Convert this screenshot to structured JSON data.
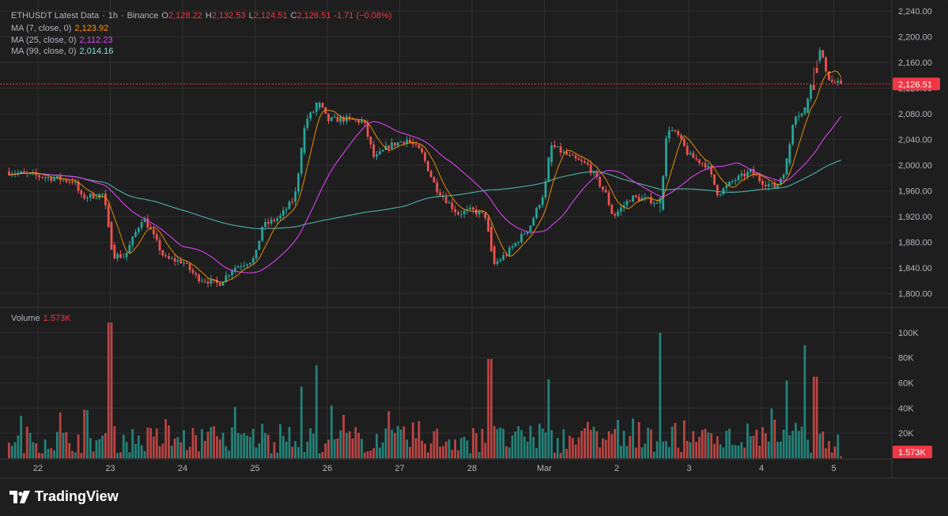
{
  "legend": {
    "symbol": "ETHUSDT Latest Data",
    "interval": "1h",
    "exchange": "Binance",
    "open_label": "O",
    "open": "2,128.22",
    "high_label": "H",
    "high": "2,132.53",
    "low_label": "L",
    "low": "2,124.51",
    "close_label": "C",
    "close": "2,126.51",
    "change": "-1.71 (−0.08%)",
    "ma7_label": "MA (7, close, 0)",
    "ma7_value": "2,123.92",
    "ma25_label": "MA (25, close, 0)",
    "ma25_value": "2,112.23",
    "ma99_label": "MA (99, close, 0)",
    "ma99_value": "2,014.16",
    "volume_label": "Volume",
    "volume_value": "1.573K"
  },
  "brand": {
    "name": "TradingView"
  },
  "colors": {
    "up": "#26a69a",
    "down": "#ef5350",
    "ma7": "#ff9800",
    "ma25": "#e040fb",
    "ma99": "#4db6ac",
    "grid": "#2e2e2e",
    "axis_text": "#b2b5be",
    "last_price": "#f23645"
  },
  "chart_data": [
    {
      "type": "candlestick",
      "title": "ETHUSDT Latest Data · 1h · Binance",
      "ylim": [
        1780,
        2240
      ],
      "y_ticks": [
        "1,800.00",
        "1,840.00",
        "1,880.00",
        "1,920.00",
        "1,960.00",
        "2,000.00",
        "2,040.00",
        "2,080.00",
        "2,120.00",
        "2,160.00",
        "2,200.00",
        "2,240.00"
      ],
      "x_ticks": [
        "22",
        "23",
        "24",
        "25",
        "26",
        "27",
        "28",
        "Mar",
        "2",
        "3",
        "4",
        "5"
      ],
      "last_price": 2126.51,
      "last_price_label": "2,126.51",
      "anchors": [
        {
          "day": 21.6,
          "close": 1990
        },
        {
          "day": 21.9,
          "close": 1985
        },
        {
          "day": 22.2,
          "close": 1980
        },
        {
          "day": 22.5,
          "close": 1975
        },
        {
          "day": 22.6,
          "close": 1950
        },
        {
          "day": 22.9,
          "close": 1955
        },
        {
          "day": 23.05,
          "close": 1860
        },
        {
          "day": 23.2,
          "close": 1858
        },
        {
          "day": 23.45,
          "close": 1920
        },
        {
          "day": 23.55,
          "close": 1900
        },
        {
          "day": 23.75,
          "close": 1855
        },
        {
          "day": 24.0,
          "close": 1850
        },
        {
          "day": 24.2,
          "close": 1825
        },
        {
          "day": 24.5,
          "close": 1815
        },
        {
          "day": 24.7,
          "close": 1840
        },
        {
          "day": 25.0,
          "close": 1855
        },
        {
          "day": 25.1,
          "close": 1905
        },
        {
          "day": 25.35,
          "close": 1920
        },
        {
          "day": 25.55,
          "close": 1950
        },
        {
          "day": 25.7,
          "close": 2070
        },
        {
          "day": 25.9,
          "close": 2095
        },
        {
          "day": 26.0,
          "close": 2070
        },
        {
          "day": 26.2,
          "close": 2072
        },
        {
          "day": 26.5,
          "close": 2068
        },
        {
          "day": 26.65,
          "close": 2010
        },
        {
          "day": 26.85,
          "close": 2030
        },
        {
          "day": 27.1,
          "close": 2040
        },
        {
          "day": 27.3,
          "close": 2020
        },
        {
          "day": 27.5,
          "close": 1965
        },
        {
          "day": 27.8,
          "close": 1925
        },
        {
          "day": 28.0,
          "close": 1930
        },
        {
          "day": 28.2,
          "close": 1920
        },
        {
          "day": 28.3,
          "close": 1845
        },
        {
          "day": 28.5,
          "close": 1865
        },
        {
          "day": 28.8,
          "close": 1905
        },
        {
          "day": 29.0,
          "close": 1960
        },
        {
          "day": 29.1,
          "close": 2030
        },
        {
          "day": 29.4,
          "close": 2010
        },
        {
          "day": 29.6,
          "close": 2000
        },
        {
          "day": 29.85,
          "close": 1955
        },
        {
          "day": 29.95,
          "close": 1920
        },
        {
          "day": 30.2,
          "close": 1950
        },
        {
          "day": 30.5,
          "close": 1945
        },
        {
          "day": 30.6,
          "close": 1935
        },
        {
          "day": 30.7,
          "close": 2060
        },
        {
          "day": 30.85,
          "close": 2045
        },
        {
          "day": 31.0,
          "close": 2015
        },
        {
          "day": 31.25,
          "close": 2000
        },
        {
          "day": 31.4,
          "close": 1955
        },
        {
          "day": 31.6,
          "close": 1975
        },
        {
          "day": 31.85,
          "close": 1990
        },
        {
          "day": 32.0,
          "close": 1975
        },
        {
          "day": 32.2,
          "close": 1965
        },
        {
          "day": 32.35,
          "close": 2000
        },
        {
          "day": 32.45,
          "close": 2080
        },
        {
          "day": 32.6,
          "close": 2080
        },
        {
          "day": 32.7,
          "close": 2140
        },
        {
          "day": 32.8,
          "close": 2180
        },
        {
          "day": 32.95,
          "close": 2130
        },
        {
          "day": 33.1,
          "close": 2126.51
        }
      ]
    },
    {
      "type": "bar",
      "title": "Volume",
      "ylim": [
        0,
        110000
      ],
      "y_ticks": [
        "20K",
        "40K",
        "60K",
        "80K",
        "100K"
      ],
      "last_value": 1573,
      "last_value_label": "1.573K",
      "peaks": [
        {
          "day": 23.0,
          "volume": 108000,
          "direction": "down"
        },
        {
          "day": 28.25,
          "volume": 79000,
          "direction": "down"
        },
        {
          "day": 25.85,
          "volume": 74000,
          "direction": "up"
        },
        {
          "day": 30.6,
          "volume": 100000,
          "direction": "up"
        },
        {
          "day": 32.6,
          "volume": 90000,
          "direction": "up"
        },
        {
          "day": 32.35,
          "volume": 62000,
          "direction": "up"
        },
        {
          "day": 32.75,
          "volume": 65000,
          "direction": "down"
        },
        {
          "day": 29.05,
          "volume": 63000,
          "direction": "up"
        },
        {
          "day": 25.65,
          "volume": 57000,
          "direction": "up"
        }
      ]
    }
  ]
}
